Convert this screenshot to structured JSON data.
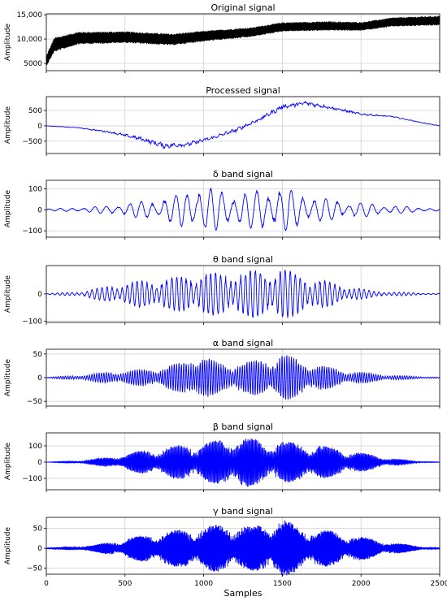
{
  "chart_data": {
    "type": "line",
    "xlabel": "Samples",
    "xlim": [
      0,
      2500
    ],
    "xticks": [
      0,
      500,
      1000,
      1500,
      2000,
      2500
    ],
    "grid": true,
    "panels": [
      {
        "id": "original",
        "title": "Original signal",
        "ylabel": "Amplitude",
        "ylim": [
          3500,
          15200
        ],
        "yticks": [
          5000,
          10000,
          15000
        ],
        "ytick_labels": [
          "5000",
          "10,000",
          "15,000"
        ],
        "color": "#000000",
        "summary": {
          "x": [
            0,
            50,
            200,
            500,
            800,
            1000,
            1300,
            1500,
            1800,
            2000,
            2200,
            2500
          ],
          "center": [
            5500,
            8800,
            10200,
            10400,
            9900,
            10600,
            11400,
            12500,
            12700,
            12600,
            13500,
            13800
          ],
          "halfwidth": [
            1100,
            1500,
            1300,
            1200,
            1200,
            1100,
            1000,
            950,
            950,
            900,
            950,
            1000
          ]
        }
      },
      {
        "id": "processed",
        "title": "Processed signal",
        "ylabel": "Amplitude",
        "ylim": [
          -900,
          950
        ],
        "yticks": [
          -500,
          0,
          500
        ],
        "ytick_labels": [
          "−500",
          "0",
          "500"
        ],
        "color": "#0000ff",
        "summary": {
          "x": [
            0,
            200,
            400,
            600,
            750,
            900,
            1050,
            1200,
            1350,
            1500,
            1650,
            1800,
            2000,
            2200,
            2400,
            2500
          ],
          "y": [
            0,
            -60,
            -200,
            -420,
            -650,
            -600,
            -400,
            -150,
            200,
            620,
            740,
            600,
            380,
            300,
            90,
            0
          ],
          "noise": [
            5,
            10,
            30,
            60,
            80,
            70,
            60,
            60,
            60,
            70,
            70,
            50,
            30,
            20,
            10,
            5
          ]
        }
      },
      {
        "id": "delta",
        "title": "δ band signal",
        "ylabel": "Amplitude",
        "ylim": [
          -130,
          140
        ],
        "yticks": [
          -100,
          0,
          100
        ],
        "ytick_labels": [
          "−100",
          "0",
          "100"
        ],
        "color": "#0000ff",
        "summary": {
          "x": [
            0,
            200,
            400,
            600,
            800,
            900,
            1000,
            1200,
            1400,
            1500,
            1600,
            1800,
            2000,
            2200,
            2500
          ],
          "envelope": [
            5,
            10,
            20,
            40,
            60,
            100,
            110,
            80,
            100,
            110,
            80,
            50,
            35,
            20,
            5
          ]
        }
      },
      {
        "id": "theta",
        "title": "θ band signal",
        "ylabel": "Amplitude",
        "ylim": [
          -105,
          105
        ],
        "yticks": [
          -100,
          0
        ],
        "ytick_labels": [
          "−100",
          "0"
        ],
        "color": "#0000ff",
        "summary": {
          "x": [
            0,
            200,
            400,
            600,
            800,
            900,
            1000,
            1200,
            1400,
            1500,
            1700,
            1900,
            2100,
            2500
          ],
          "envelope": [
            2,
            8,
            30,
            50,
            60,
            70,
            80,
            80,
            95,
            95,
            60,
            30,
            10,
            2
          ]
        }
      },
      {
        "id": "alpha",
        "title": "α band signal",
        "ylabel": "Amplitude",
        "ylim": [
          -60,
          60
        ],
        "yticks": [
          -50,
          0,
          50
        ],
        "ytick_labels": [
          "−50",
          "0",
          "50"
        ],
        "color": "#0000ff",
        "summary": {
          "x": [
            0,
            200,
            400,
            700,
            900,
            950,
            1100,
            1300,
            1450,
            1500,
            1700,
            1900,
            2200,
            2500
          ],
          "envelope": [
            1,
            5,
            12,
            20,
            35,
            55,
            30,
            35,
            45,
            50,
            30,
            15,
            5,
            1
          ]
        }
      },
      {
        "id": "beta",
        "title": "β band signal",
        "ylabel": "Amplitude",
        "ylim": [
          -170,
          180
        ],
        "yticks": [
          -100,
          0,
          100
        ],
        "ytick_labels": [
          "−100",
          "0",
          "100"
        ],
        "color": "#0000ff",
        "summary": {
          "x": [
            0,
            200,
            400,
            600,
            800,
            1000,
            1200,
            1300,
            1400,
            1500,
            1700,
            1900,
            2100,
            2300,
            2500
          ],
          "envelope": [
            1,
            8,
            30,
            70,
            100,
            120,
            160,
            150,
            120,
            130,
            110,
            80,
            40,
            10,
            1
          ]
        }
      },
      {
        "id": "gamma",
        "title": "γ band signal",
        "ylabel": "Amplitude",
        "ylim": [
          -65,
          78
        ],
        "yticks": [
          -50,
          0,
          50
        ],
        "ytick_labels": [
          "−50",
          "0",
          "50"
        ],
        "color": "#0000ff",
        "summary": {
          "x": [
            0,
            100,
            300,
            500,
            700,
            900,
            1100,
            1300,
            1500,
            1600,
            1800,
            2000,
            2200,
            2400,
            2500
          ],
          "envelope": [
            1,
            3,
            8,
            25,
            40,
            50,
            60,
            55,
            75,
            55,
            45,
            30,
            15,
            4,
            1
          ]
        }
      }
    ]
  }
}
